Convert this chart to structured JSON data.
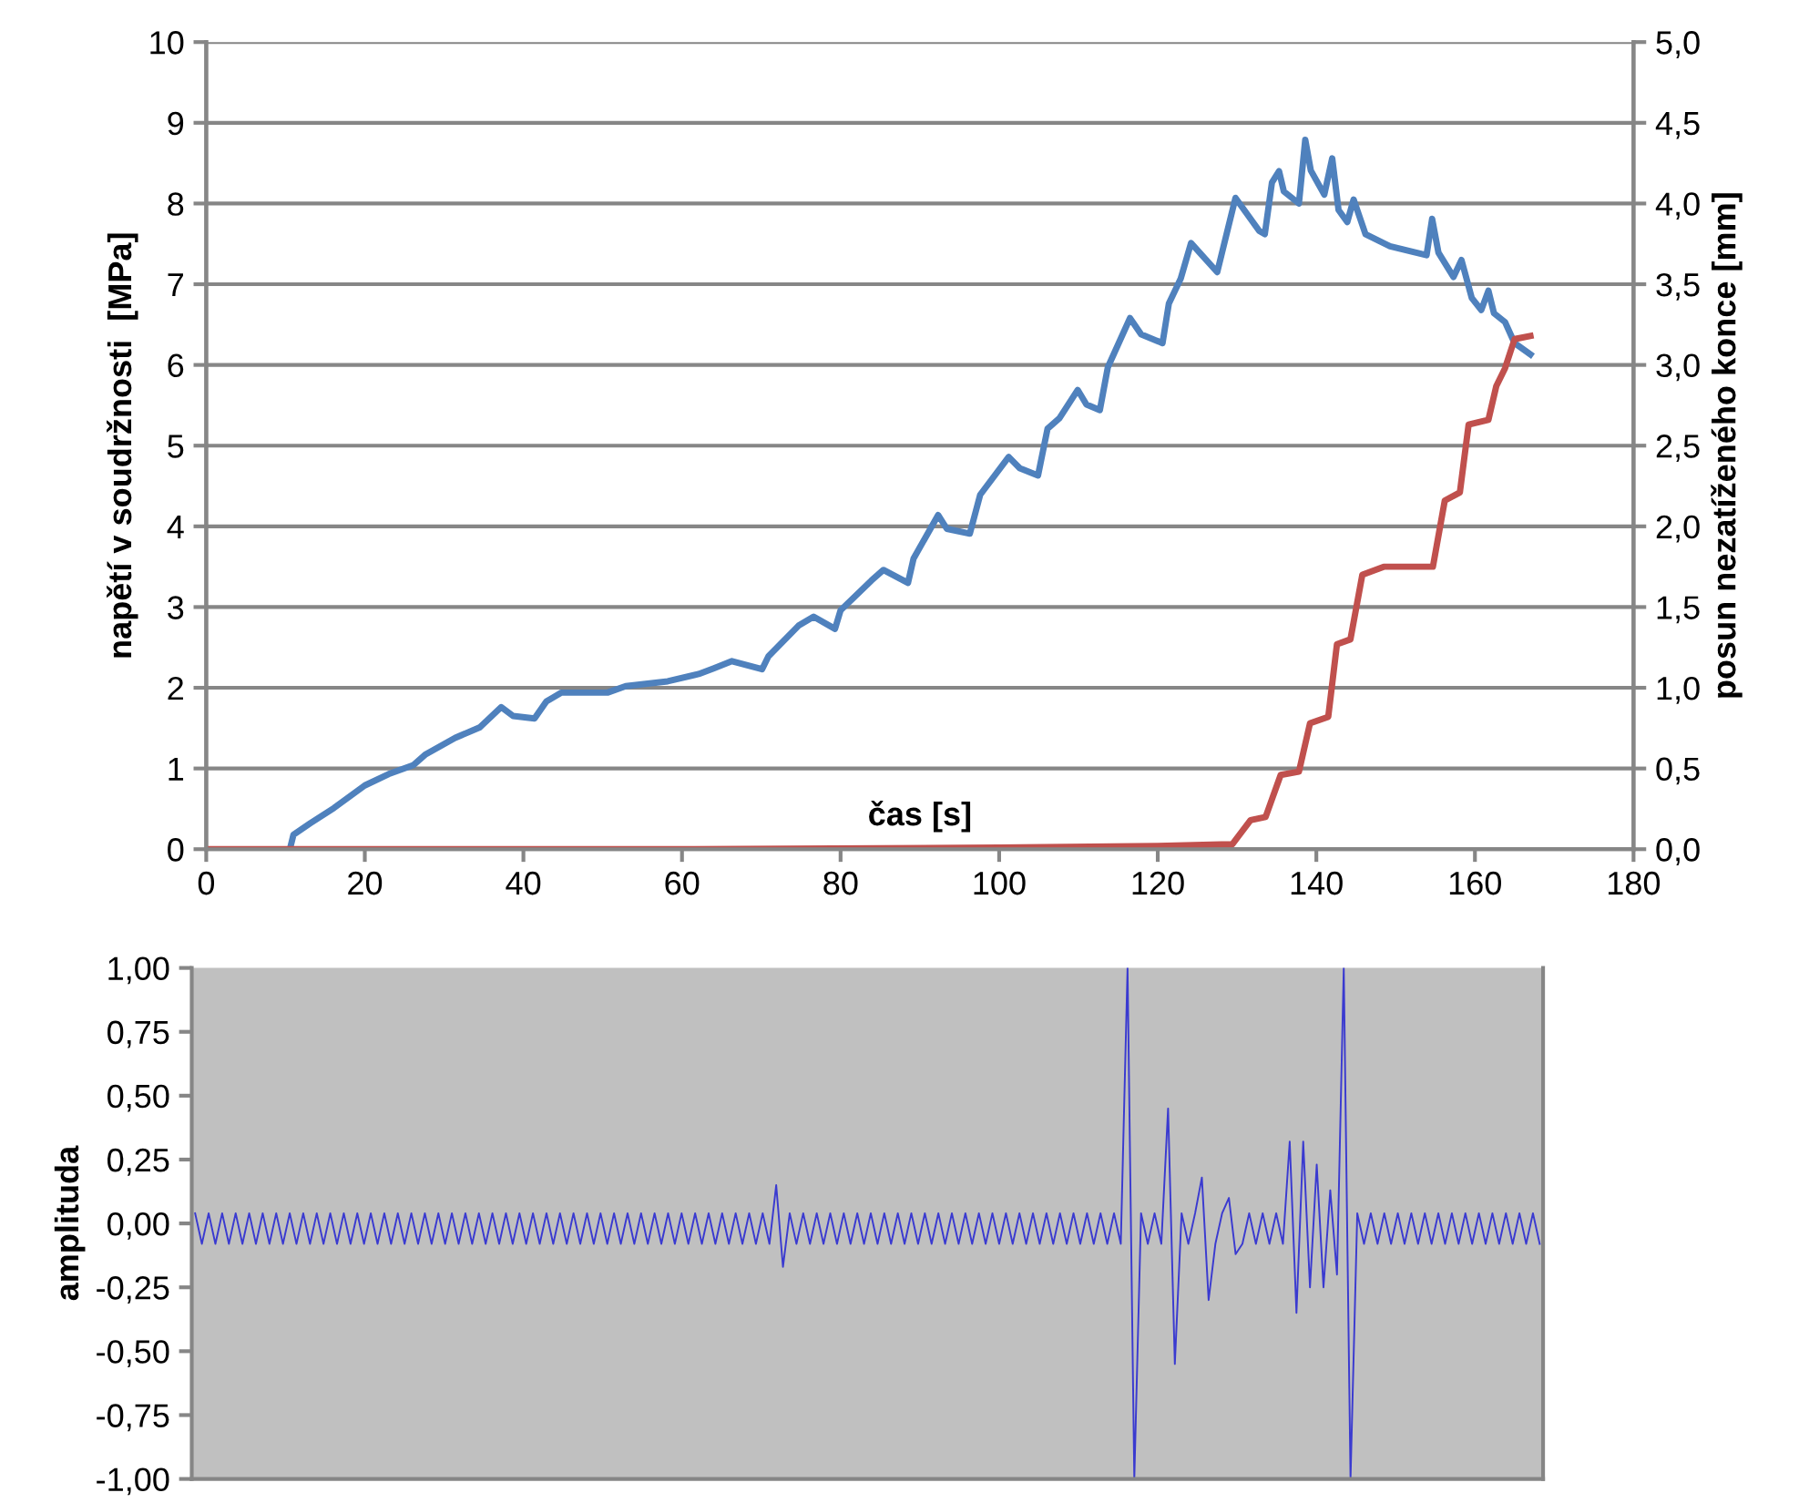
{
  "chart_data": [
    {
      "type": "line",
      "xlabel": "čas [s]",
      "ylabel": "napětí v soudržnosti  [MPa]",
      "y2label": "posun nezatíženého konce [mm]",
      "xlim": [
        0,
        180
      ],
      "xticks": [
        0,
        20,
        40,
        60,
        80,
        100,
        120,
        140,
        160,
        180
      ],
      "ylim": [
        0,
        10
      ],
      "yticks": [
        0,
        1,
        2,
        3,
        4,
        5,
        6,
        7,
        8,
        9,
        10
      ],
      "y2lim": [
        0,
        5
      ],
      "y2ticks": [
        {
          "value": 0,
          "label": "0,0"
        },
        {
          "value": 0.5,
          "label": "0,5"
        },
        {
          "value": 1,
          "label": "1,0"
        },
        {
          "value": 1.5,
          "label": "1,5"
        },
        {
          "value": 2,
          "label": "2,0"
        },
        {
          "value": 2.5,
          "label": "2,5"
        },
        {
          "value": 3,
          "label": "3,0"
        },
        {
          "value": 3.5,
          "label": "3,5"
        },
        {
          "value": 4,
          "label": "4,0"
        },
        {
          "value": 4.5,
          "label": "4,5"
        },
        {
          "value": 5,
          "label": "5,0"
        }
      ],
      "grid": "y",
      "series": [
        {
          "color": "#4f81bd",
          "x": [
            10.6,
            11.0,
            13.1,
            16.1,
            20.0,
            23.0,
            26.1,
            27.6,
            31.4,
            34.5,
            37.2,
            38.7,
            41.4,
            42.9,
            44.8,
            50.6,
            52.9,
            58.2,
            62.1,
            64.0,
            66.3,
            70.1,
            70.9,
            74.7,
            76.6,
            79.3,
            80.0,
            83.9,
            85.4,
            88.5,
            89.2,
            92.3,
            93.4,
            96.3,
            97.6,
            101.2,
            102.6,
            104.9,
            106.1,
            107.6,
            109.9,
            111.0,
            112.7,
            113.7,
            116.5,
            117.9,
            120.6,
            121.4,
            122.9,
            124.2,
            127.5,
            129.8,
            132.8,
            133.5,
            134.4,
            135.3,
            135.9,
            137.8,
            138.6,
            139.3,
            141.0,
            142.0,
            142.8,
            143.9,
            144.7,
            146.2,
            149.3,
            153.9,
            154.6,
            155.4,
            157.3,
            158.3,
            159.6,
            160.8,
            161.7,
            162.4,
            163.8,
            165.0,
            167.0
          ],
          "values": [
            0.02,
            0.18,
            0.32,
            0.51,
            0.79,
            0.93,
            1.04,
            1.17,
            1.38,
            1.51,
            1.76,
            1.65,
            1.62,
            1.83,
            1.94,
            1.94,
            2.02,
            2.08,
            2.17,
            2.24,
            2.33,
            2.23,
            2.39,
            2.77,
            2.88,
            2.73,
            2.96,
            3.33,
            3.46,
            3.3,
            3.6,
            4.14,
            3.97,
            3.91,
            4.39,
            4.86,
            4.72,
            4.63,
            5.21,
            5.34,
            5.69,
            5.51,
            5.44,
            5.97,
            6.58,
            6.38,
            6.27,
            6.76,
            7.07,
            7.51,
            7.15,
            8.07,
            7.66,
            7.62,
            8.26,
            8.4,
            8.15,
            8.0,
            8.79,
            8.41,
            8.11,
            8.56,
            7.92,
            7.77,
            8.05,
            7.62,
            7.47,
            7.36,
            7.81,
            7.39,
            7.09,
            7.3,
            6.83,
            6.68,
            6.92,
            6.64,
            6.53,
            6.27,
            6.13
          ]
        },
        {
          "color": "#c0504d",
          "axis": "y2",
          "x": [
            0,
            60,
            100,
            120,
            128,
            129.4,
            131.7,
            133.6,
            135.5,
            137.8,
            139.2,
            141.5,
            142.6,
            144.3,
            145.8,
            148.5,
            154.7,
            156.2,
            158.1,
            159.2,
            161.7,
            162.7,
            163.8,
            165.0,
            167.0
          ],
          "values": [
            0,
            0,
            0.01,
            0.02,
            0.03,
            0.03,
            0.18,
            0.2,
            0.46,
            0.48,
            0.78,
            0.82,
            1.27,
            1.3,
            1.7,
            1.75,
            1.75,
            2.16,
            2.21,
            2.63,
            2.66,
            2.87,
            2.98,
            3.16,
            3.18
          ]
        }
      ]
    },
    {
      "type": "line",
      "ylabel": "amplituda",
      "tick_labels": "y",
      "ylim": [
        -1,
        1
      ],
      "yticks": [
        {
          "value": 1,
          "label": "1,00"
        },
        {
          "value": 0.75,
          "label": "0,75"
        },
        {
          "value": 0.5,
          "label": "0,50"
        },
        {
          "value": 0.25,
          "label": "0,25"
        },
        {
          "value": 0,
          "label": "0,00"
        },
        {
          "value": -0.25,
          "label": "-0,25"
        },
        {
          "value": -0.5,
          "label": "-0,50"
        },
        {
          "value": -0.75,
          "label": "-0,75"
        },
        {
          "value": -1,
          "label": "-1,00"
        }
      ],
      "categories": [
        null,
        null,
        null,
        null,
        null,
        null,
        null,
        null,
        null,
        null,
        null,
        null,
        null,
        null,
        null,
        null,
        null,
        null,
        null,
        null,
        null,
        null,
        null,
        null,
        null,
        null,
        null,
        null,
        null,
        null,
        null,
        null,
        null,
        null,
        null,
        null,
        null,
        null,
        null,
        null,
        null,
        null,
        null,
        null,
        null,
        null,
        null,
        null,
        null,
        null,
        null,
        null,
        null,
        null,
        null,
        null,
        null,
        null,
        null,
        null,
        null,
        null,
        null,
        null,
        null,
        null,
        null,
        null,
        null,
        null,
        null,
        null,
        null,
        null,
        null,
        null,
        null,
        null,
        null,
        null,
        null,
        null,
        null,
        null,
        null,
        null,
        null,
        null,
        null,
        null,
        null,
        null,
        null,
        null,
        null,
        null,
        null,
        null,
        null,
        null,
        null,
        null,
        null,
        null,
        null,
        null,
        null,
        null,
        null,
        null,
        null,
        null,
        null,
        null,
        null,
        null,
        null,
        null,
        null,
        null,
        null,
        null,
        null,
        null,
        null,
        null,
        null,
        null,
        null,
        null,
        null,
        null,
        null,
        null,
        null,
        null,
        null,
        null,
        null,
        null,
        null,
        null,
        null,
        null,
        null,
        null,
        null,
        null,
        null,
        null,
        null,
        null,
        null,
        null,
        null,
        null,
        null,
        null,
        null,
        null,
        null,
        null,
        null,
        null,
        null,
        null,
        null,
        null,
        null,
        null,
        null,
        null,
        null,
        null,
        null,
        null,
        null,
        null,
        null,
        null,
        null,
        null,
        null,
        null,
        null,
        null,
        null,
        null,
        null,
        null,
        null,
        null,
        null,
        null,
        null,
        null,
        null,
        null,
        null,
        null
      ],
      "series": [
        {
          "color": "#3a3ad0",
          "values": [
            0.04,
            -0.08,
            0.04,
            -0.08,
            0.04,
            -0.08,
            0.04,
            -0.08,
            0.04,
            -0.08,
            0.04,
            -0.08,
            0.04,
            -0.08,
            0.04,
            -0.08,
            0.04,
            -0.08,
            0.04,
            -0.08,
            0.04,
            -0.08,
            0.04,
            -0.08,
            0.04,
            -0.08,
            0.04,
            -0.08,
            0.04,
            -0.08,
            0.04,
            -0.08,
            0.04,
            -0.08,
            0.04,
            -0.08,
            0.04,
            -0.08,
            0.04,
            -0.08,
            0.04,
            -0.08,
            0.04,
            -0.08,
            0.04,
            -0.08,
            0.04,
            -0.08,
            0.04,
            -0.08,
            0.04,
            -0.08,
            0.04,
            -0.08,
            0.04,
            -0.08,
            0.04,
            -0.08,
            0.04,
            -0.08,
            0.04,
            -0.08,
            0.04,
            -0.08,
            0.04,
            -0.08,
            0.04,
            -0.08,
            0.04,
            -0.08,
            0.04,
            -0.08,
            0.04,
            -0.08,
            0.04,
            -0.08,
            0.04,
            -0.08,
            0.04,
            -0.08,
            0.04,
            -0.08,
            0.04,
            -0.08,
            0.04,
            -0.08,
            0.15,
            -0.17,
            0.04,
            -0.08,
            0.04,
            -0.08,
            0.04,
            -0.08,
            0.04,
            -0.08,
            0.04,
            -0.08,
            0.04,
            -0.08,
            0.04,
            -0.08,
            0.04,
            -0.08,
            0.04,
            -0.08,
            0.04,
            -0.08,
            0.04,
            -0.08,
            0.04,
            -0.08,
            0.04,
            -0.08,
            0.04,
            -0.08,
            0.04,
            -0.08,
            0.04,
            -0.08,
            0.04,
            -0.08,
            0.04,
            -0.08,
            0.04,
            -0.08,
            0.04,
            -0.08,
            0.04,
            -0.08,
            0.04,
            -0.08,
            0.04,
            -0.08,
            0.04,
            -0.08,
            0.04,
            -0.08,
            1.0,
            -1.0,
            0.04,
            -0.08,
            0.04,
            -0.08,
            0.45,
            -0.55,
            0.04,
            -0.08,
            0.04,
            0.18,
            -0.3,
            -0.08,
            0.04,
            0.1,
            -0.12,
            -0.08,
            0.04,
            -0.08,
            0.04,
            -0.08,
            0.04,
            -0.08,
            0.32,
            -0.35,
            0.32,
            -0.25,
            0.23,
            -0.25,
            0.13,
            -0.2,
            1.0,
            -1.0,
            0.04,
            -0.08,
            0.04,
            -0.08,
            0.04,
            -0.08,
            0.04,
            -0.08,
            0.04,
            -0.08,
            0.04,
            -0.08,
            0.04,
            -0.08,
            0.04,
            -0.08,
            0.04,
            -0.08,
            0.04,
            -0.08,
            0.04,
            -0.08,
            0.04,
            -0.08,
            0.04,
            -0.08,
            0.04,
            -0.08
          ]
        }
      ]
    }
  ]
}
